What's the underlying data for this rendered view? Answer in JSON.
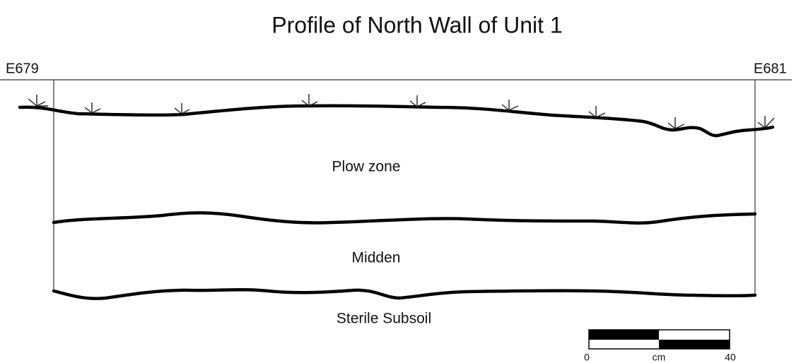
{
  "title": "Profile of North Wall of Unit 1",
  "left_label": "E679",
  "right_label": "E681",
  "layers": [
    "Plow zone",
    "Midden",
    "Sterile Subsoil"
  ],
  "scale": {
    "start": "0",
    "unit": "cm",
    "end": "40"
  }
}
